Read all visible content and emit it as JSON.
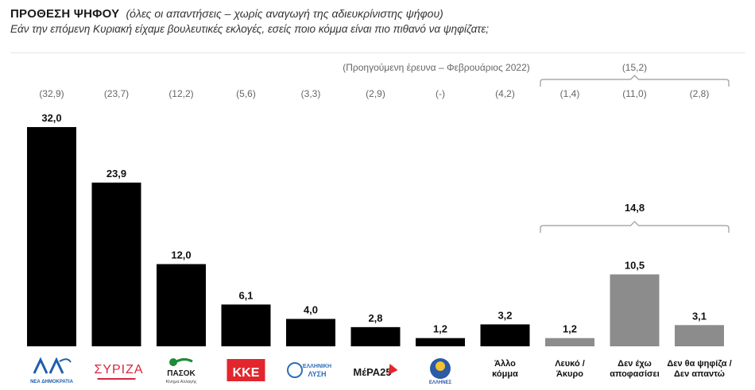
{
  "header": {
    "title": "ΠΡΟΘΕΣΗ ΨΗΦΟΥ",
    "subtitle": "(όλες οι απαντήσεις – χωρίς αναγωγή της αδιευκρίνιστης ψήφου)",
    "question": "Εάν την επόμενη Κυριακή είχαμε βουλευτικές εκλογές, εσείς ποιο κόμμα είναι πιο πιθανό να ψηφίζατε;"
  },
  "colors": {
    "party_bar": "#000000",
    "other_bar": "#8c8c8c",
    "brace": "#999999"
  },
  "chart_data": {
    "type": "bar",
    "previous_survey_label": "(Προηγούμενη έρευνα – Φεβρουάριος 2022)",
    "categories": [
      {
        "label": "ΝΕΑ ΔΗΜΟΚΡΑΤΙΑ",
        "icon": "nea-dimokratia-logo",
        "value": 32.0,
        "value_label": "32,0",
        "previous": "(32,9)",
        "group": "party"
      },
      {
        "label": "ΣΥΡΙΖΑ",
        "icon": "syriza-logo",
        "value": 23.9,
        "value_label": "23,9",
        "previous": "(23,7)",
        "group": "party"
      },
      {
        "label": "ΠΑΣΟΚ",
        "icon": "pasok-logo",
        "value": 12.0,
        "value_label": "12,0",
        "previous": "(12,2)",
        "group": "party"
      },
      {
        "label": "ΚΚΕ",
        "icon": "kke-logo",
        "value": 6.1,
        "value_label": "6,1",
        "previous": "(5,6)",
        "group": "party"
      },
      {
        "label": "ΕΛΛΗΝΙΚΗ ΛΥΣΗ",
        "icon": "elliniki-lysi-logo",
        "value": 4.0,
        "value_label": "4,0",
        "previous": "(3,3)",
        "group": "party"
      },
      {
        "label": "ΜέΡΑ25",
        "icon": "mera25-logo",
        "value": 2.8,
        "value_label": "2,8",
        "previous": "(2,9)",
        "group": "party"
      },
      {
        "label": "ΕΛΛΗΝΕΣ",
        "icon": "ellines-logo",
        "value": 1.2,
        "value_label": "1,2",
        "previous": "(-)",
        "group": "party"
      },
      {
        "label": [
          "Άλλο",
          "κόμμα"
        ],
        "value": 3.2,
        "value_label": "3,2",
        "previous": "(4,2)",
        "group": "party"
      },
      {
        "label": [
          "Λευκό /",
          "Άκυρο"
        ],
        "value": 1.2,
        "value_label": "1,2",
        "previous": "(1,4)",
        "group": "other"
      },
      {
        "label": [
          "Δεν έχω",
          "αποφασίσει"
        ],
        "value": 10.5,
        "value_label": "10,5",
        "previous": "(11,0)",
        "group": "other"
      },
      {
        "label": [
          "Δεν θα ψηφίζα /",
          "Δεν απαντώ"
        ],
        "value": 3.1,
        "value_label": "3,1",
        "previous": "(2,8)",
        "group": "other"
      }
    ],
    "group_total": {
      "value": 14.8,
      "value_label": "14,8",
      "previous": "(15,2)",
      "covers": [
        8,
        9,
        10
      ]
    },
    "ylim": [
      0,
      32
    ],
    "grid": false,
    "legend": "none"
  }
}
